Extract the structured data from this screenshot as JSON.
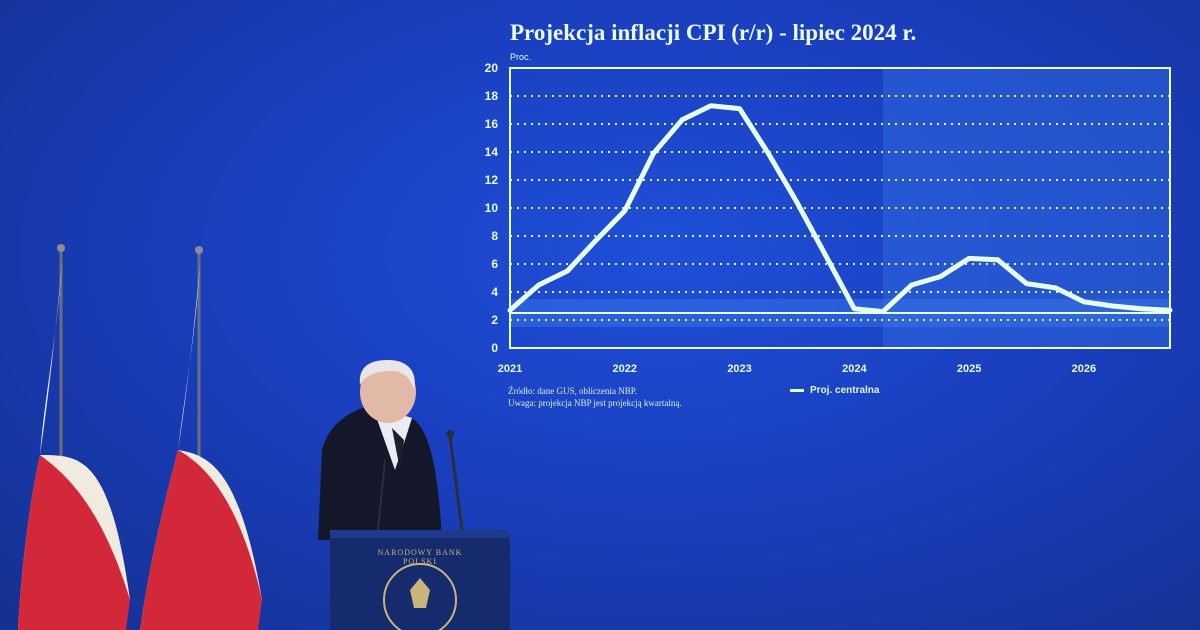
{
  "chart_data": {
    "type": "line",
    "title": "Projekcja inflacji CPI (r/r) - lipiec 2024 r.",
    "ylabel": "Proc.",
    "xlabel": "",
    "ylim": [
      0,
      20
    ],
    "xlim": [
      2021.0,
      2026.75
    ],
    "y_ticks": [
      "0",
      "2",
      "4",
      "6",
      "8",
      "10",
      "12",
      "14",
      "16",
      "18",
      "20"
    ],
    "x_ticks": [
      {
        "label": "2021",
        "x": 2021.0
      },
      {
        "label": "2022",
        "x": 2022.0
      },
      {
        "label": "2023",
        "x": 2023.0
      },
      {
        "label": "2024",
        "x": 2024.0
      },
      {
        "label": "2025",
        "x": 2025.0
      },
      {
        "label": "2026",
        "x": 2026.0
      }
    ],
    "grid": true,
    "projection_start": 2024.25,
    "target_band": [
      1.5,
      3.5
    ],
    "target_line": 2.5,
    "series": [
      {
        "name": "Proj. centralna",
        "x": [
          2021.0,
          2021.25,
          2021.5,
          2021.75,
          2022.0,
          2022.25,
          2022.5,
          2022.75,
          2023.0,
          2023.25,
          2023.5,
          2023.75,
          2024.0,
          2024.25,
          2024.5,
          2024.75,
          2025.0,
          2025.25,
          2025.5,
          2025.75,
          2026.0,
          2026.25,
          2026.5,
          2026.75
        ],
        "values": [
          2.7,
          4.5,
          5.5,
          7.7,
          9.8,
          13.9,
          16.3,
          17.3,
          17.1,
          13.9,
          10.4,
          6.6,
          2.8,
          2.6,
          4.5,
          5.1,
          6.4,
          6.3,
          4.6,
          4.3,
          3.3,
          3.0,
          2.8,
          2.7
        ]
      }
    ],
    "notes": [
      "Źródło: dane GUS, obliczenia NBP.",
      "Uwaga: projekcja NBP jest projekcją kwartalną."
    ],
    "colors": {
      "line": "#e6ffe8",
      "grid": "#dff5e6",
      "projection_bg": "#2f66dd",
      "band": "#3a73e8"
    }
  },
  "podium": {
    "inscription": "NARODOWY BANK POLSKI"
  },
  "colors": {
    "background": "#1a3fbf",
    "flag_white": "#f1eadf",
    "flag_red": "#d3283a"
  }
}
